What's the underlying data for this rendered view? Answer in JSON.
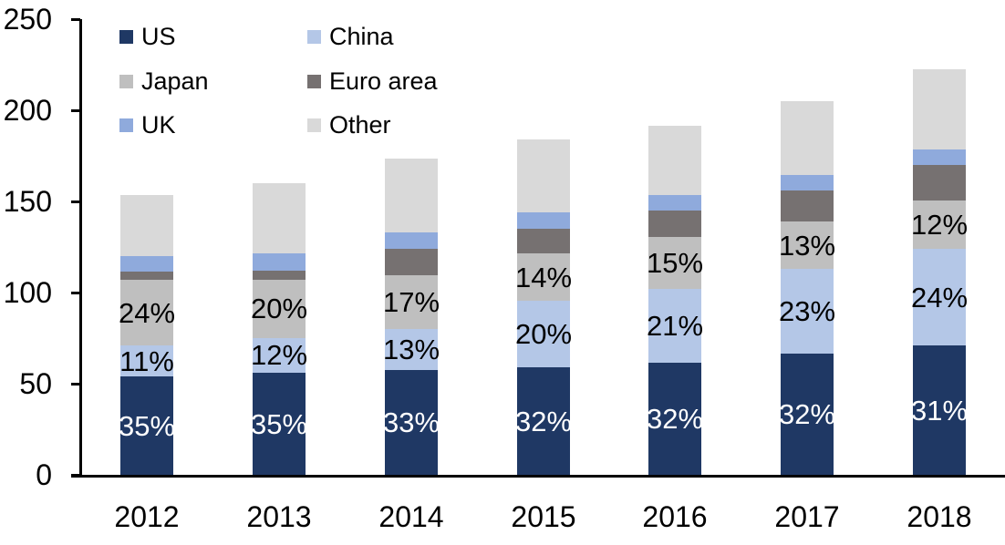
{
  "chart_data": {
    "type": "bar",
    "stacked": true,
    "title": "",
    "xlabel": "",
    "ylabel": "",
    "categories": [
      "2012",
      "2013",
      "2014",
      "2015",
      "2016",
      "2017",
      "2018"
    ],
    "series": [
      {
        "name": "US",
        "color": "#1F3864",
        "values": [
          54,
          56,
          57.5,
          59,
          61.5,
          66.5,
          71
        ],
        "labels": [
          "35%",
          "35%",
          "33%",
          "32%",
          "32%",
          "32%",
          "31%"
        ],
        "label_color": "#FFFFFF"
      },
      {
        "name": "China",
        "color": "#B4C7E7",
        "values": [
          17,
          19.2,
          22.5,
          36.5,
          40.3,
          46.5,
          53
        ],
        "labels": [
          "11%",
          "12%",
          "13%",
          "20%",
          "21%",
          "23%",
          "24%"
        ],
        "label_color": "#000000"
      },
      {
        "name": "Japan",
        "color": "#BFBFBF",
        "values": [
          36,
          32,
          29.5,
          26,
          28.5,
          26,
          26.5
        ],
        "labels": [
          "24%",
          "20%",
          "17%",
          "14%",
          "15%",
          "13%",
          "12%"
        ],
        "label_color": "#000000"
      },
      {
        "name": "Euro area",
        "color": "#767171",
        "values": [
          4.7,
          5,
          14.5,
          13.3,
          14.9,
          17,
          19.5
        ],
        "labels": null,
        "label_color": null
      },
      {
        "name": "UK",
        "color": "#8FAADC",
        "values": [
          8.3,
          9.3,
          9,
          9.2,
          8.3,
          8.5,
          8.5
        ],
        "labels": null,
        "label_color": null
      },
      {
        "name": "Other",
        "color": "#D9D9D9",
        "values": [
          33.5,
          38.5,
          40.5,
          40,
          38,
          40.5,
          44
        ],
        "labels": null,
        "label_color": null
      }
    ],
    "ylim": [
      0,
      250
    ],
    "yticks": [
      0,
      50,
      100,
      150,
      200,
      250
    ],
    "grid": false,
    "legend_position": "top-left",
    "legend_columns": [
      [
        "US",
        "Japan",
        "UK"
      ],
      [
        "China",
        "Euro area",
        "Other"
      ]
    ],
    "axis_color": "#000000",
    "text_color": "#000000",
    "background_color": "#FFFFFF"
  }
}
